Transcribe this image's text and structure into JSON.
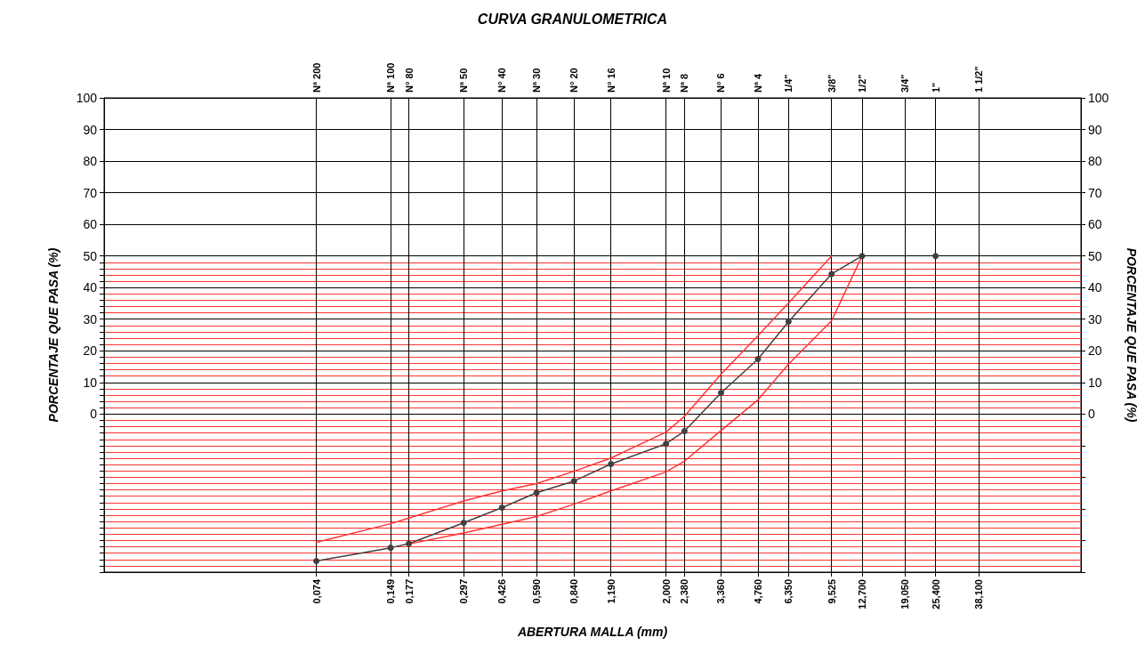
{
  "chart_data": {
    "type": "line",
    "title": "CURVA GRANULOMETRICA",
    "xlabel": "ABERTURA MALLA (mm)",
    "ylabel": "PORCENTAJE QUE PASA (%)",
    "y2label": "PORCENTAJE QUE PASA (%)",
    "x": [
      0.074,
      0.149,
      0.177,
      0.297,
      0.426,
      0.59,
      0.84,
      1.19,
      2.0,
      2.38,
      3.36,
      4.76,
      6.35,
      9.525,
      12.7,
      19.05,
      25.4
    ],
    "series": [
      {
        "color": "#404040",
        "marker": "circle",
        "values": [
          -46.5,
          -42.3,
          -41,
          -34.4,
          -29.6,
          -24.9,
          -21.2,
          -15.8,
          -9.4,
          -5.4,
          6.7,
          17.4,
          29.2,
          44.3,
          50,
          null,
          50
        ]
      },
      {
        "color": "#ff3333",
        "marker": "none",
        "values": [
          -40.6,
          -34.7,
          -32.9,
          -27.5,
          -24.3,
          -22,
          -18.1,
          -13.9,
          -5.7,
          -0.7,
          12.6,
          24.8,
          35.1,
          50,
          null,
          null,
          null
        ]
      },
      {
        "color": "#ff3333",
        "marker": "none",
        "values": [
          null,
          null,
          -41.1,
          -37.6,
          -34.9,
          -32.4,
          -28.5,
          -24.3,
          -18.3,
          -14.9,
          -5.2,
          4.5,
          15.8,
          29.5,
          50,
          null,
          null
        ]
      }
    ],
    "xlim": [
      0.01,
      100
    ],
    "xticks": [
      {
        "value": 0.074,
        "label": "0,074"
      },
      {
        "value": 0.149,
        "label": "0,149"
      },
      {
        "value": 0.177,
        "label": "0,177"
      },
      {
        "value": 0.297,
        "label": "0,297"
      },
      {
        "value": 0.426,
        "label": "0,426"
      },
      {
        "value": 0.59,
        "label": "0,590"
      },
      {
        "value": 0.84,
        "label": "0,840"
      },
      {
        "value": 1.19,
        "label": "1,190"
      },
      {
        "value": 2.0,
        "label": "2,000"
      },
      {
        "value": 2.38,
        "label": "2,380"
      },
      {
        "value": 3.36,
        "label": "3,360"
      },
      {
        "value": 4.76,
        "label": "4,760"
      },
      {
        "value": 6.35,
        "label": "6,350"
      },
      {
        "value": 9.525,
        "label": "9,525"
      },
      {
        "value": 12.7,
        "label": "12,700"
      },
      {
        "value": 19.05,
        "label": "19,050"
      },
      {
        "value": 25.4,
        "label": "25,400"
      },
      {
        "value": 38.1,
        "label": "38,100"
      }
    ],
    "annotations": [
      "Nª 200",
      "Nª 100",
      "N° 80",
      "Nª 50",
      "N° 40",
      "Nª 30",
      "N° 20",
      "N° 16",
      "Nª 10",
      "Nª 8",
      "N° 6",
      "Nª 4",
      "1/4\"",
      "3/8\"",
      "1/2\"",
      "3/4\"",
      "1\"",
      "1 1/2\""
    ],
    "ylim": [
      -50,
      100
    ],
    "yticks": [
      {
        "value": -50,
        "label": null
      },
      {
        "value": -48,
        "label": null
      },
      {
        "value": -46,
        "label": null
      },
      {
        "value": -44,
        "label": null
      },
      {
        "value": -42,
        "label": null
      },
      {
        "value": -40,
        "label": null
      },
      {
        "value": -38,
        "label": null
      },
      {
        "value": -36,
        "label": null
      },
      {
        "value": -34,
        "label": null
      },
      {
        "value": -32,
        "label": null
      },
      {
        "value": -30,
        "label": null
      },
      {
        "value": -28,
        "label": null
      },
      {
        "value": -26,
        "label": null
      },
      {
        "value": -24,
        "label": null
      },
      {
        "value": -22,
        "label": null
      },
      {
        "value": -20,
        "label": null
      },
      {
        "value": -18,
        "label": null
      },
      {
        "value": -16,
        "label": null
      },
      {
        "value": -14,
        "label": null
      },
      {
        "value": -12,
        "label": null
      },
      {
        "value": -10,
        "label": null
      },
      {
        "value": -8,
        "label": null
      },
      {
        "value": -6,
        "label": null
      },
      {
        "value": -4,
        "label": null
      },
      {
        "value": -2,
        "label": null
      },
      0,
      {
        "value": 2,
        "label": null
      },
      {
        "value": 4,
        "label": null
      },
      {
        "value": 6,
        "label": null
      },
      {
        "value": 8,
        "label": null
      },
      10,
      {
        "value": 12,
        "label": null
      },
      {
        "value": 14,
        "label": null
      },
      {
        "value": 16,
        "label": null
      },
      {
        "value": 18,
        "label": null
      },
      20,
      {
        "value": 22,
        "label": null
      },
      {
        "value": 24,
        "label": null
      },
      {
        "value": 26,
        "label": null
      },
      {
        "value": 28,
        "label": null
      },
      30,
      {
        "value": 32,
        "label": null
      },
      {
        "value": 34,
        "label": null
      },
      {
        "value": 36,
        "label": null
      },
      {
        "value": 38,
        "label": null
      },
      40,
      {
        "value": 42,
        "label": null
      },
      {
        "value": 44,
        "label": null
      },
      {
        "value": 46,
        "label": null
      },
      {
        "value": 48,
        "label": null
      },
      50,
      60,
      70,
      80,
      90,
      100
    ],
    "y2lim": [
      -50,
      100
    ],
    "y2ticks": [
      {
        "value": -50,
        "label": null
      },
      {
        "value": -40,
        "label": null
      },
      {
        "value": -30,
        "label": null
      },
      {
        "value": -20,
        "label": null
      },
      {
        "value": -10,
        "label": null
      },
      0,
      10,
      20,
      30,
      40,
      50,
      60,
      70,
      80,
      90,
      100
    ],
    "log": "x",
    "grid": true,
    "legend": false,
    "line_style": "solid"
  }
}
